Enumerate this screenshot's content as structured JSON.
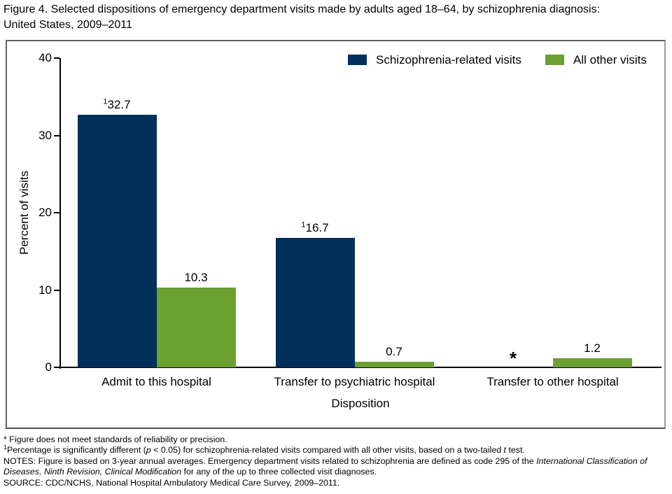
{
  "title": {
    "line1": "Figure 4. Selected dispositions of emergency department visits made by adults aged 18–64, by schizophrenia diagnosis:",
    "line2": "United States, 2009–2011"
  },
  "chart_data": {
    "type": "bar",
    "title": "Figure 4. Selected dispositions of emergency department visits made by adults aged 18–64, by schizophrenia diagnosis: United States, 2009–2011",
    "categories": [
      "Admit to this hospital",
      "Transfer to psychiatric hospital",
      "Transfer to other hospital"
    ],
    "series": [
      {
        "name": "Schizophrenia-related visits",
        "color": "#002f5c",
        "values": [
          32.7,
          16.7,
          null
        ],
        "value_labels": [
          {
            "sup": "1",
            "text": "32.7"
          },
          {
            "sup": "1",
            "text": "16.7"
          },
          {
            "sup": "",
            "text": "*",
            "suppressed": true
          }
        ]
      },
      {
        "name": "All other visits",
        "color": "#6aa131",
        "values": [
          10.3,
          0.7,
          1.2
        ],
        "value_labels": [
          {
            "sup": "",
            "text": "10.3"
          },
          {
            "sup": "",
            "text": "0.7"
          },
          {
            "sup": "",
            "text": "1.2"
          }
        ]
      }
    ],
    "xlabel": "Disposition",
    "ylabel": "Percent of visits",
    "ylim": [
      0,
      40
    ],
    "yticks": [
      0,
      10,
      20,
      30,
      40
    ],
    "grid": false,
    "legend_position": "top-right",
    "suppressed_note_symbol": "*"
  },
  "footnotes": [
    [
      {
        "text": "* Figure does not meet standards of reliability or precision."
      }
    ],
    [
      {
        "text": "1",
        "sup": true
      },
      {
        "text": "Percentage is significantly different ("
      },
      {
        "text": "p",
        "italic": true
      },
      {
        "text": " < 0.05) for schizophrenia-related visits compared with all other visits, based on a two-tailed "
      },
      {
        "text": "t",
        "italic": true
      },
      {
        "text": " test."
      }
    ],
    [
      {
        "text": "NOTES: Figure is based on 3-year annual averages. Emergency department visits related to schizophrenia are defined as code 295 of the "
      },
      {
        "text": "International Classification of Diseases, Ninth Revision, Clinical Modification",
        "italic": true
      },
      {
        "text": " for any of the up to three collected visit diagnoses."
      }
    ],
    [
      {
        "text": "SOURCE: CDC/NCHS, National Hospital Ambulatory Medical Care Survey, 2009–2011."
      }
    ]
  ]
}
